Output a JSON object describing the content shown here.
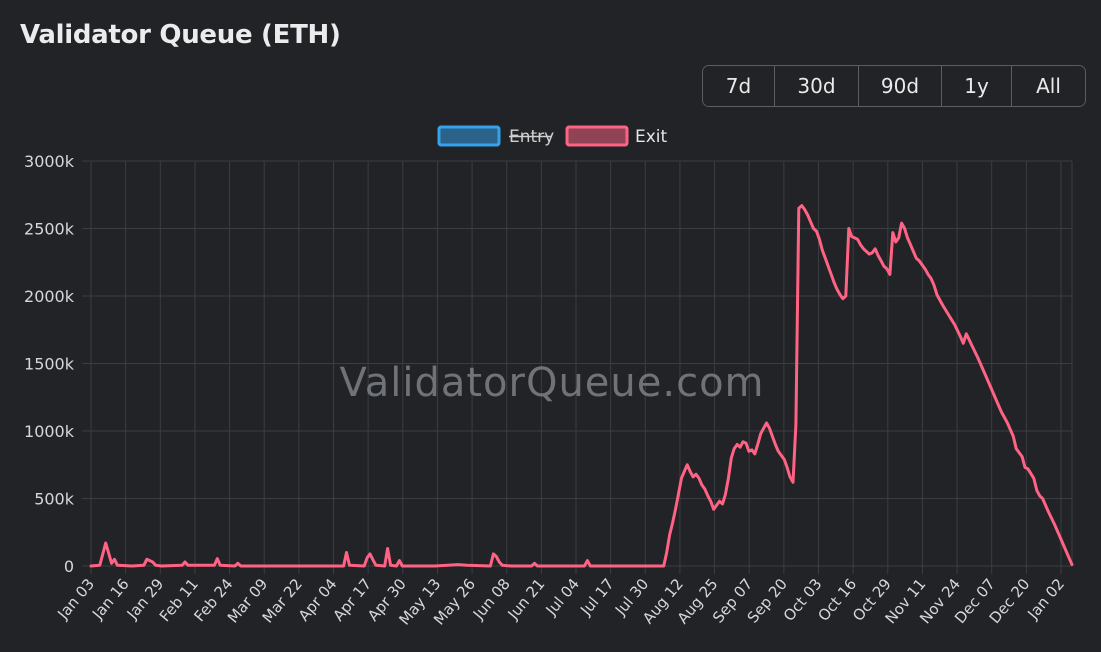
{
  "header": {
    "title": "Validator Queue (ETH)"
  },
  "range_buttons": [
    "7d",
    "30d",
    "90d",
    "1y",
    "All"
  ],
  "watermark": "ValidatorQueue.com",
  "colors": {
    "background": "#212327",
    "grid": "#3a3d42",
    "entry": "#36a2eb",
    "exit": "#ff6384",
    "tick_text": "#d7d7d7"
  },
  "chart_data": {
    "type": "line",
    "title": "",
    "xlabel": "",
    "ylabel": "",
    "ylim": [
      0,
      3000000
    ],
    "y_ticks": [
      0,
      500000,
      1000000,
      1500000,
      2000000,
      2500000,
      3000000
    ],
    "y_tick_labels": [
      "0",
      "500k",
      "1000k",
      "1500k",
      "2000k",
      "2500k",
      "3000k"
    ],
    "x_tick_labels": [
      "Jan 03",
      "Jan 16",
      "Jan 29",
      "Feb 11",
      "Feb 24",
      "Mar 09",
      "Mar 22",
      "Apr 04",
      "Apr 17",
      "Apr 30",
      "May 13",
      "May 26",
      "Jun 08",
      "Jun 21",
      "Jul 04",
      "Jul 17",
      "Jul 30",
      "Aug 12",
      "Aug 25",
      "Sep 07",
      "Sep 20",
      "Oct 03",
      "Oct 16",
      "Oct 29",
      "Nov 11",
      "Nov 24",
      "Dec 07",
      "Dec 20",
      "Jan 02"
    ],
    "grid": true,
    "legend_position": "top-center",
    "series": [
      {
        "name": "Entry",
        "hidden": true,
        "points": []
      },
      {
        "name": "Exit",
        "hidden": false,
        "points": [
          [
            0,
            0
          ],
          [
            3,
            5000
          ],
          [
            5,
            170000
          ],
          [
            7,
            20000
          ],
          [
            8,
            50000
          ],
          [
            9,
            5000
          ],
          [
            14,
            0
          ],
          [
            18,
            5000
          ],
          [
            19,
            50000
          ],
          [
            21,
            30000
          ],
          [
            22,
            5000
          ],
          [
            24,
            0
          ],
          [
            31,
            5000
          ],
          [
            32,
            30000
          ],
          [
            33,
            5000
          ],
          [
            42,
            5000
          ],
          [
            43,
            55000
          ],
          [
            44,
            5000
          ],
          [
            49,
            0
          ],
          [
            50,
            20000
          ],
          [
            51,
            0
          ],
          [
            63,
            0
          ],
          [
            75,
            0
          ],
          [
            86,
            0
          ],
          [
            87,
            100000
          ],
          [
            88,
            5000
          ],
          [
            93,
            0
          ],
          [
            94,
            60000
          ],
          [
            95,
            90000
          ],
          [
            96,
            45000
          ],
          [
            97,
            5000
          ],
          [
            100,
            0
          ],
          [
            101,
            130000
          ],
          [
            102,
            5000
          ],
          [
            104,
            0
          ],
          [
            105,
            40000
          ],
          [
            106,
            0
          ],
          [
            117,
            0
          ],
          [
            125,
            10000
          ],
          [
            128,
            5000
          ],
          [
            136,
            0
          ],
          [
            137,
            90000
          ],
          [
            138,
            70000
          ],
          [
            139,
            30000
          ],
          [
            140,
            5000
          ],
          [
            143,
            0
          ],
          [
            150,
            0
          ],
          [
            151,
            20000
          ],
          [
            152,
            0
          ],
          [
            160,
            0
          ],
          [
            168,
            0
          ],
          [
            169,
            40000
          ],
          [
            170,
            0
          ],
          [
            180,
            0
          ],
          [
            195,
            0
          ],
          [
            196,
            100000
          ],
          [
            197,
            230000
          ],
          [
            198,
            320000
          ],
          [
            199,
            420000
          ],
          [
            200,
            530000
          ],
          [
            201,
            650000
          ],
          [
            202,
            700000
          ],
          [
            203,
            750000
          ],
          [
            204,
            700000
          ],
          [
            205,
            660000
          ],
          [
            206,
            680000
          ],
          [
            207,
            650000
          ],
          [
            208,
            600000
          ],
          [
            209,
            570000
          ],
          [
            210,
            520000
          ],
          [
            211,
            480000
          ],
          [
            212,
            420000
          ],
          [
            213,
            450000
          ],
          [
            214,
            480000
          ],
          [
            215,
            460000
          ],
          [
            216,
            530000
          ],
          [
            217,
            650000
          ],
          [
            218,
            800000
          ],
          [
            219,
            870000
          ],
          [
            220,
            900000
          ],
          [
            221,
            880000
          ],
          [
            222,
            920000
          ],
          [
            223,
            910000
          ],
          [
            224,
            850000
          ],
          [
            225,
            860000
          ],
          [
            226,
            830000
          ],
          [
            227,
            900000
          ],
          [
            228,
            980000
          ],
          [
            229,
            1020000
          ],
          [
            230,
            1060000
          ],
          [
            231,
            1020000
          ],
          [
            232,
            960000
          ],
          [
            233,
            900000
          ],
          [
            234,
            850000
          ],
          [
            235,
            820000
          ],
          [
            236,
            790000
          ],
          [
            237,
            730000
          ],
          [
            238,
            660000
          ],
          [
            239,
            620000
          ],
          [
            240,
            1050000
          ],
          [
            241,
            2650000
          ],
          [
            242,
            2670000
          ],
          [
            243,
            2640000
          ],
          [
            244,
            2600000
          ],
          [
            245,
            2550000
          ],
          [
            246,
            2500000
          ],
          [
            247,
            2480000
          ],
          [
            248,
            2420000
          ],
          [
            249,
            2340000
          ],
          [
            250,
            2280000
          ],
          [
            251,
            2220000
          ],
          [
            252,
            2160000
          ],
          [
            253,
            2100000
          ],
          [
            254,
            2050000
          ],
          [
            255,
            2010000
          ],
          [
            256,
            1980000
          ],
          [
            257,
            2000000
          ],
          [
            258,
            2500000
          ],
          [
            259,
            2440000
          ],
          [
            260,
            2430000
          ],
          [
            261,
            2420000
          ],
          [
            262,
            2380000
          ],
          [
            263,
            2350000
          ],
          [
            264,
            2330000
          ],
          [
            265,
            2310000
          ],
          [
            266,
            2320000
          ],
          [
            267,
            2350000
          ],
          [
            268,
            2300000
          ],
          [
            269,
            2260000
          ],
          [
            270,
            2220000
          ],
          [
            271,
            2200000
          ],
          [
            272,
            2160000
          ],
          [
            273,
            2470000
          ],
          [
            274,
            2400000
          ],
          [
            275,
            2430000
          ],
          [
            276,
            2540000
          ],
          [
            277,
            2500000
          ],
          [
            278,
            2430000
          ],
          [
            279,
            2380000
          ],
          [
            280,
            2330000
          ],
          [
            281,
            2280000
          ],
          [
            282,
            2260000
          ],
          [
            283,
            2230000
          ],
          [
            284,
            2200000
          ],
          [
            285,
            2160000
          ],
          [
            286,
            2130000
          ],
          [
            287,
            2080000
          ],
          [
            288,
            2010000
          ],
          [
            290,
            1930000
          ],
          [
            292,
            1860000
          ],
          [
            294,
            1790000
          ],
          [
            296,
            1700000
          ],
          [
            297,
            1650000
          ],
          [
            298,
            1720000
          ],
          [
            300,
            1630000
          ],
          [
            302,
            1540000
          ],
          [
            304,
            1440000
          ],
          [
            306,
            1340000
          ],
          [
            308,
            1240000
          ],
          [
            310,
            1140000
          ],
          [
            312,
            1060000
          ],
          [
            314,
            960000
          ],
          [
            315,
            870000
          ],
          [
            317,
            810000
          ],
          [
            318,
            730000
          ],
          [
            319,
            720000
          ],
          [
            321,
            650000
          ],
          [
            322,
            560000
          ],
          [
            323,
            520000
          ],
          [
            324,
            500000
          ],
          [
            326,
            400000
          ],
          [
            328,
            310000
          ],
          [
            330,
            210000
          ],
          [
            332,
            110000
          ],
          [
            334,
            10000
          ]
        ]
      }
    ]
  }
}
